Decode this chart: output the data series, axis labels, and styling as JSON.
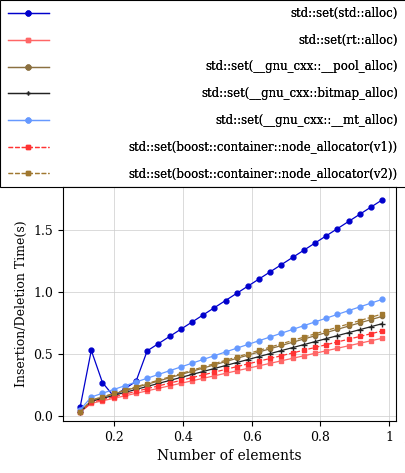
{
  "xlabel": "Number of elements",
  "ylabel": "Insertion/Deletion Time(s)",
  "series": [
    {
      "label": "std::set(std::alloc)",
      "color": "#0000cc",
      "marker": "o",
      "linestyle": "-",
      "linewidth": 0.9,
      "markersize": 3.5,
      "markerfacecolor": "#0000cc",
      "dashed": false
    },
    {
      "label": "std::set(rt::alloc)",
      "color": "#ff6666",
      "marker": "s",
      "linestyle": "-",
      "linewidth": 0.9,
      "markersize": 3,
      "markerfacecolor": "#ff6666",
      "dashed": false
    },
    {
      "label": "std::set(__gnu_cxx::__pool_alloc)",
      "color": "#8B7040",
      "marker": "o",
      "linestyle": "-",
      "linewidth": 0.9,
      "markersize": 3,
      "markerfacecolor": "#8B7040",
      "dashed": false
    },
    {
      "label": "std::set(__gnu_cxx::bitmap_alloc)",
      "color": "#222222",
      "marker": "+",
      "linestyle": "-",
      "linewidth": 0.9,
      "markersize": 4,
      "markerfacecolor": "#222222",
      "dashed": false
    },
    {
      "label": "std::set(__gnu_cxx::__mt_alloc)",
      "color": "#6699ff",
      "marker": "o",
      "linestyle": "-",
      "linewidth": 0.9,
      "markersize": 3.5,
      "markerfacecolor": "#6699ff",
      "dashed": false
    },
    {
      "label": "std::set(boost::container::node_allocator(v1))",
      "color": "#ff3333",
      "marker": "s",
      "linestyle": "--",
      "linewidth": 0.9,
      "markersize": 3,
      "markerfacecolor": "#ff3333",
      "dashed": true
    },
    {
      "label": "std::set(boost::container::node_allocator(v2))",
      "color": "#a07830",
      "marker": "s",
      "linestyle": "--",
      "linewidth": 0.9,
      "markersize": 3,
      "markerfacecolor": "#a07830",
      "dashed": true
    }
  ],
  "ylim": [
    -0.04,
    1.85
  ],
  "xlim": [
    50000,
    1020000
  ],
  "yticks": [
    0.0,
    0.5,
    1.0,
    1.5
  ],
  "xticks": [
    200000,
    400000,
    600000,
    800000,
    1000000
  ],
  "xtick_labels": [
    "0.2",
    "0.4",
    "0.6",
    "0.8",
    "1"
  ],
  "grid": true,
  "figsize": [
    4.06,
    4.73
  ],
  "dpi": 100
}
